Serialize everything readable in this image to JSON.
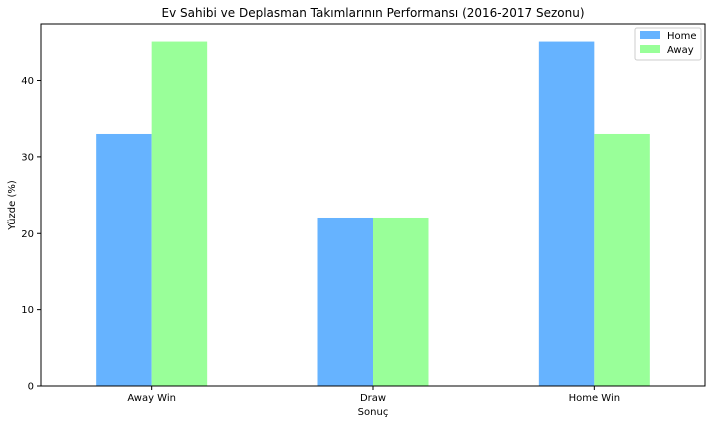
{
  "chart_data": {
    "type": "bar",
    "title": "Ev Sahibi ve Deplasman Takımlarının Performansı (2016-2017 Sezonu)",
    "xlabel": "Sonuç",
    "ylabel": "Yüzde (%)",
    "categories": [
      "Away Win",
      "Draw",
      "Home Win"
    ],
    "series": [
      {
        "name": "Home",
        "values": [
          33.0,
          22.0,
          45.1
        ],
        "color": "#66b3ff"
      },
      {
        "name": "Away",
        "values": [
          45.1,
          22.0,
          33.0
        ],
        "color": "#99ff99"
      }
    ],
    "ylim": [
      0,
      47.4
    ],
    "yticks": [
      0,
      10,
      20,
      30,
      40
    ],
    "grid": false,
    "legend": "top-right"
  }
}
